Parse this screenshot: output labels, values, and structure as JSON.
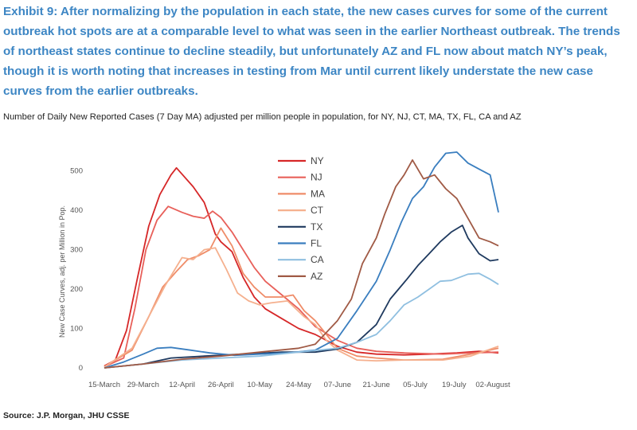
{
  "header": {
    "title": "Exhibit 9: After normalizing by the population in each state, the new cases curves for some of the current outbreak hot spots are at a comparable level to what was seen in the earlier Northeast outbreak. The trends of northeast states continue to decline steadily, but unfortunately AZ and FL now about match NY’s peak, though it is worth noting that increases in testing from Mar until current likely understate the new case curves from the earlier outbreaks.",
    "subtitle": "Number of Daily New Reported Cases (7 Day MA) adjusted per million people in population, for NY, NJ, CT, MA, TX, FL, CA and AZ"
  },
  "footer": {
    "source": "Source: J.P. Morgan, JHU CSSE"
  },
  "chart_data": {
    "type": "line",
    "title": "",
    "ylabel": "New Case Curves, adj. per Million in Pop.",
    "xlabel": "",
    "ylim": [
      0,
      550
    ],
    "xlim": [
      "2020-03-15",
      "2020-08-06"
    ],
    "yticks": [
      0,
      100,
      200,
      300,
      400,
      500
    ],
    "xticks": [
      "15-March",
      "29-March",
      "12-April",
      "26-April",
      "10-May",
      "24-May",
      "07-June",
      "21-June",
      "05-July",
      "19-July",
      "02-August"
    ],
    "grid": false,
    "legend_position": "center-top",
    "series": [
      {
        "name": "NY",
        "color": "#d62728",
        "points": [
          [
            "2020-03-15",
            5
          ],
          [
            "2020-03-19",
            20
          ],
          [
            "2020-03-23",
            95
          ],
          [
            "2020-03-27",
            230
          ],
          [
            "2020-03-31",
            360
          ],
          [
            "2020-04-04",
            440
          ],
          [
            "2020-04-08",
            490
          ],
          [
            "2020-04-10",
            508
          ],
          [
            "2020-04-12",
            492
          ],
          [
            "2020-04-16",
            460
          ],
          [
            "2020-04-20",
            420
          ],
          [
            "2020-04-22",
            380
          ],
          [
            "2020-04-24",
            340
          ],
          [
            "2020-04-26",
            320
          ],
          [
            "2020-04-30",
            295
          ],
          [
            "2020-05-04",
            230
          ],
          [
            "2020-05-08",
            180
          ],
          [
            "2020-05-12",
            150
          ],
          [
            "2020-05-18",
            125
          ],
          [
            "2020-05-24",
            100
          ],
          [
            "2020-05-30",
            85
          ],
          [
            "2020-06-07",
            55
          ],
          [
            "2020-06-14",
            40
          ],
          [
            "2020-06-21",
            35
          ],
          [
            "2020-07-01",
            33
          ],
          [
            "2020-07-10",
            35
          ],
          [
            "2020-07-20",
            38
          ],
          [
            "2020-07-28",
            42
          ],
          [
            "2020-08-04",
            38
          ]
        ]
      },
      {
        "name": "NJ",
        "color": "#e8605a",
        "points": [
          [
            "2020-03-15",
            3
          ],
          [
            "2020-03-22",
            25
          ],
          [
            "2020-03-26",
            150
          ],
          [
            "2020-03-30",
            300
          ],
          [
            "2020-04-03",
            375
          ],
          [
            "2020-04-07",
            410
          ],
          [
            "2020-04-12",
            395
          ],
          [
            "2020-04-16",
            385
          ],
          [
            "2020-04-20",
            380
          ],
          [
            "2020-04-23",
            398
          ],
          [
            "2020-04-26",
            382
          ],
          [
            "2020-04-30",
            345
          ],
          [
            "2020-05-04",
            300
          ],
          [
            "2020-05-08",
            255
          ],
          [
            "2020-05-12",
            220
          ],
          [
            "2020-05-18",
            185
          ],
          [
            "2020-05-24",
            150
          ],
          [
            "2020-05-30",
            105
          ],
          [
            "2020-06-07",
            70
          ],
          [
            "2020-06-14",
            50
          ],
          [
            "2020-06-21",
            42
          ],
          [
            "2020-07-01",
            38
          ],
          [
            "2020-07-15",
            35
          ],
          [
            "2020-07-25",
            38
          ],
          [
            "2020-08-04",
            40
          ]
        ]
      },
      {
        "name": "MA",
        "color": "#ef8c68",
        "points": [
          [
            "2020-03-15",
            3
          ],
          [
            "2020-03-25",
            45
          ],
          [
            "2020-03-31",
            130
          ],
          [
            "2020-04-05",
            205
          ],
          [
            "2020-04-10",
            245
          ],
          [
            "2020-04-14",
            275
          ],
          [
            "2020-04-18",
            285
          ],
          [
            "2020-04-22",
            300
          ],
          [
            "2020-04-26",
            355
          ],
          [
            "2020-04-30",
            310
          ],
          [
            "2020-05-04",
            240
          ],
          [
            "2020-05-08",
            205
          ],
          [
            "2020-05-12",
            180
          ],
          [
            "2020-05-18",
            180
          ],
          [
            "2020-05-22",
            185
          ],
          [
            "2020-05-26",
            145
          ],
          [
            "2020-05-30",
            120
          ],
          [
            "2020-06-03",
            85
          ],
          [
            "2020-06-07",
            50
          ],
          [
            "2020-06-14",
            30
          ],
          [
            "2020-06-21",
            25
          ],
          [
            "2020-07-01",
            20
          ],
          [
            "2020-07-15",
            22
          ],
          [
            "2020-07-25",
            35
          ],
          [
            "2020-08-04",
            50
          ]
        ]
      },
      {
        "name": "CT",
        "color": "#f5b08e",
        "points": [
          [
            "2020-03-15",
            2
          ],
          [
            "2020-03-25",
            50
          ],
          [
            "2020-03-31",
            130
          ],
          [
            "2020-04-06",
            210
          ],
          [
            "2020-04-12",
            280
          ],
          [
            "2020-04-16",
            275
          ],
          [
            "2020-04-20",
            300
          ],
          [
            "2020-04-24",
            305
          ],
          [
            "2020-04-28",
            250
          ],
          [
            "2020-05-02",
            190
          ],
          [
            "2020-05-06",
            170
          ],
          [
            "2020-05-10",
            160
          ],
          [
            "2020-05-14",
            165
          ],
          [
            "2020-05-20",
            170
          ],
          [
            "2020-05-26",
            130
          ],
          [
            "2020-05-30",
            110
          ],
          [
            "2020-06-03",
            70
          ],
          [
            "2020-06-07",
            45
          ],
          [
            "2020-06-14",
            20
          ],
          [
            "2020-06-21",
            18
          ],
          [
            "2020-07-01",
            20
          ],
          [
            "2020-07-15",
            20
          ],
          [
            "2020-07-25",
            30
          ],
          [
            "2020-08-04",
            55
          ]
        ]
      },
      {
        "name": "TX",
        "color": "#1f3a5f",
        "points": [
          [
            "2020-03-15",
            0
          ],
          [
            "2020-03-29",
            10
          ],
          [
            "2020-04-08",
            25
          ],
          [
            "2020-04-20",
            30
          ],
          [
            "2020-05-04",
            35
          ],
          [
            "2020-05-18",
            40
          ],
          [
            "2020-05-30",
            40
          ],
          [
            "2020-06-07",
            48
          ],
          [
            "2020-06-14",
            65
          ],
          [
            "2020-06-21",
            110
          ],
          [
            "2020-06-26",
            175
          ],
          [
            "2020-07-02",
            225
          ],
          [
            "2020-07-06",
            260
          ],
          [
            "2020-07-10",
            290
          ],
          [
            "2020-07-14",
            320
          ],
          [
            "2020-07-18",
            345
          ],
          [
            "2020-07-22",
            362
          ],
          [
            "2020-07-24",
            330
          ],
          [
            "2020-07-28",
            290
          ],
          [
            "2020-08-01",
            272
          ],
          [
            "2020-08-04",
            275
          ]
        ]
      },
      {
        "name": "FL",
        "color": "#3a7ebf",
        "points": [
          [
            "2020-03-15",
            0
          ],
          [
            "2020-03-22",
            15
          ],
          [
            "2020-03-29",
            35
          ],
          [
            "2020-04-03",
            50
          ],
          [
            "2020-04-08",
            52
          ],
          [
            "2020-04-15",
            45
          ],
          [
            "2020-04-22",
            38
          ],
          [
            "2020-05-01",
            32
          ],
          [
            "2020-05-10",
            35
          ],
          [
            "2020-05-20",
            38
          ],
          [
            "2020-05-30",
            45
          ],
          [
            "2020-06-07",
            75
          ],
          [
            "2020-06-14",
            145
          ],
          [
            "2020-06-21",
            220
          ],
          [
            "2020-06-26",
            300
          ],
          [
            "2020-06-30",
            370
          ],
          [
            "2020-07-04",
            430
          ],
          [
            "2020-07-08",
            460
          ],
          [
            "2020-07-12",
            510
          ],
          [
            "2020-07-16",
            545
          ],
          [
            "2020-07-20",
            548
          ],
          [
            "2020-07-24",
            520
          ],
          [
            "2020-07-28",
            505
          ],
          [
            "2020-08-01",
            490
          ],
          [
            "2020-08-04",
            395
          ]
        ]
      },
      {
        "name": "CA",
        "color": "#8fbfe0",
        "points": [
          [
            "2020-03-15",
            0
          ],
          [
            "2020-03-29",
            10
          ],
          [
            "2020-04-12",
            20
          ],
          [
            "2020-04-26",
            25
          ],
          [
            "2020-05-10",
            30
          ],
          [
            "2020-05-24",
            40
          ],
          [
            "2020-06-07",
            50
          ],
          [
            "2020-06-14",
            65
          ],
          [
            "2020-06-21",
            85
          ],
          [
            "2020-06-26",
            120
          ],
          [
            "2020-07-01",
            160
          ],
          [
            "2020-07-06",
            180
          ],
          [
            "2020-07-10",
            200
          ],
          [
            "2020-07-14",
            220
          ],
          [
            "2020-07-18",
            222
          ],
          [
            "2020-07-24",
            238
          ],
          [
            "2020-07-28",
            240
          ],
          [
            "2020-08-01",
            225
          ],
          [
            "2020-08-04",
            212
          ]
        ]
      },
      {
        "name": "AZ",
        "color": "#a05a45",
        "points": [
          [
            "2020-03-15",
            0
          ],
          [
            "2020-03-29",
            10
          ],
          [
            "2020-04-12",
            22
          ],
          [
            "2020-04-26",
            30
          ],
          [
            "2020-05-10",
            40
          ],
          [
            "2020-05-24",
            50
          ],
          [
            "2020-05-30",
            60
          ],
          [
            "2020-06-03",
            90
          ],
          [
            "2020-06-07",
            120
          ],
          [
            "2020-06-12",
            175
          ],
          [
            "2020-06-16",
            265
          ],
          [
            "2020-06-21",
            330
          ],
          [
            "2020-06-24",
            390
          ],
          [
            "2020-06-28",
            460
          ],
          [
            "2020-07-01",
            490
          ],
          [
            "2020-07-04",
            528
          ],
          [
            "2020-07-08",
            480
          ],
          [
            "2020-07-12",
            490
          ],
          [
            "2020-07-16",
            455
          ],
          [
            "2020-07-20",
            430
          ],
          [
            "2020-07-24",
            380
          ],
          [
            "2020-07-28",
            330
          ],
          [
            "2020-08-01",
            320
          ],
          [
            "2020-08-04",
            310
          ]
        ]
      }
    ]
  }
}
